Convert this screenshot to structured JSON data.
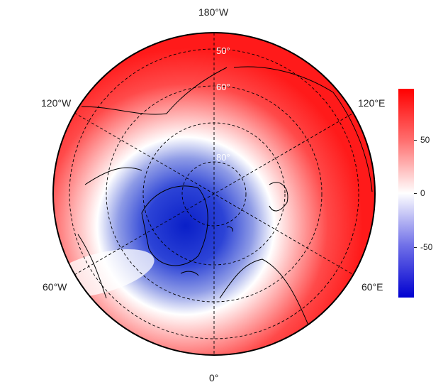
{
  "map": {
    "projection": "north-polar-stereographic",
    "field_pattern": "negative anomaly (blue) over the Arctic / Greenland, positive anomaly (red) at mid-latitudes",
    "lon_labels": {
      "top": "180°W",
      "bottom": "0°",
      "upper_left": "120°W",
      "upper_right": "120°E",
      "lower_left": "60°W",
      "lower_right": "60°E"
    },
    "lat_labels": [
      "50°",
      "60°",
      "80°"
    ]
  },
  "colorbar": {
    "ticks": [
      "50",
      "0",
      "-50"
    ],
    "tick_values": [
      50,
      0,
      -50
    ],
    "range": [
      -95,
      95
    ],
    "colors": {
      "max": "#ff0000",
      "mid": "#ffffff",
      "min": "#0000d0"
    }
  }
}
